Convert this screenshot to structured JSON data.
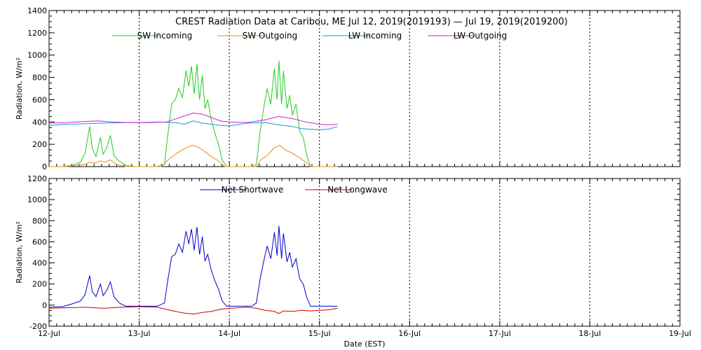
{
  "chart_data": [
    {
      "type": "line",
      "title": "CREST Radiation Data at Caribou, ME   Jul 12, 2019(2019193) — Jul 19, 2019(2019200)",
      "ylabel": "Radiation, W/m^2",
      "xlabel": "",
      "ylim": [
        0,
        1400
      ],
      "yticks": [
        0,
        200,
        400,
        600,
        800,
        1000,
        1200,
        1400
      ],
      "xlim": [
        0,
        7
      ],
      "grid": true,
      "legend": "top",
      "x_unit": "days since 12-Jul",
      "series": [
        {
          "name": "SW Incoming",
          "color": "#22cc22",
          "points": [
            [
              0,
              0
            ],
            [
              0.15,
              0
            ],
            [
              0.25,
              10
            ],
            [
              0.35,
              40
            ],
            [
              0.4,
              120
            ],
            [
              0.45,
              360
            ],
            [
              0.48,
              160
            ],
            [
              0.52,
              90
            ],
            [
              0.57,
              260
            ],
            [
              0.6,
              110
            ],
            [
              0.64,
              170
            ],
            [
              0.68,
              280
            ],
            [
              0.72,
              100
            ],
            [
              0.76,
              60
            ],
            [
              0.85,
              10
            ],
            [
              0.95,
              0
            ],
            [
              1.2,
              0
            ],
            [
              1.28,
              20
            ],
            [
              1.32,
              300
            ],
            [
              1.36,
              560
            ],
            [
              1.4,
              600
            ],
            [
              1.44,
              700
            ],
            [
              1.48,
              620
            ],
            [
              1.52,
              860
            ],
            [
              1.55,
              720
            ],
            [
              1.58,
              900
            ],
            [
              1.61,
              650
            ],
            [
              1.64,
              920
            ],
            [
              1.67,
              600
            ],
            [
              1.7,
              820
            ],
            [
              1.73,
              520
            ],
            [
              1.76,
              600
            ],
            [
              1.8,
              420
            ],
            [
              1.84,
              300
            ],
            [
              1.88,
              200
            ],
            [
              1.92,
              60
            ],
            [
              1.97,
              0
            ],
            [
              2.25,
              0
            ],
            [
              2.3,
              20
            ],
            [
              2.34,
              300
            ],
            [
              2.38,
              520
            ],
            [
              2.42,
              700
            ],
            [
              2.46,
              560
            ],
            [
              2.5,
              880
            ],
            [
              2.53,
              600
            ],
            [
              2.55,
              950
            ],
            [
              2.58,
              560
            ],
            [
              2.6,
              860
            ],
            [
              2.64,
              520
            ],
            [
              2.67,
              640
            ],
            [
              2.7,
              460
            ],
            [
              2.74,
              560
            ],
            [
              2.78,
              320
            ],
            [
              2.82,
              260
            ],
            [
              2.86,
              100
            ],
            [
              2.9,
              0
            ],
            [
              3.2,
              0
            ]
          ]
        },
        {
          "name": "SW Outgoing",
          "color": "#ee8811",
          "points": [
            [
              0,
              0
            ],
            [
              0.2,
              0
            ],
            [
              0.3,
              10
            ],
            [
              0.4,
              20
            ],
            [
              0.45,
              40
            ],
            [
              0.5,
              30
            ],
            [
              0.57,
              50
            ],
            [
              0.62,
              40
            ],
            [
              0.68,
              60
            ],
            [
              0.75,
              20
            ],
            [
              0.85,
              0
            ],
            [
              1.25,
              0
            ],
            [
              1.32,
              60
            ],
            [
              1.4,
              110
            ],
            [
              1.48,
              150
            ],
            [
              1.55,
              180
            ],
            [
              1.6,
              190
            ],
            [
              1.66,
              170
            ],
            [
              1.72,
              140
            ],
            [
              1.8,
              90
            ],
            [
              1.88,
              50
            ],
            [
              1.95,
              0
            ],
            [
              2.3,
              0
            ],
            [
              2.35,
              60
            ],
            [
              2.42,
              100
            ],
            [
              2.5,
              170
            ],
            [
              2.56,
              190
            ],
            [
              2.62,
              150
            ],
            [
              2.7,
              120
            ],
            [
              2.78,
              80
            ],
            [
              2.86,
              30
            ],
            [
              2.9,
              0
            ],
            [
              3.2,
              0
            ]
          ]
        },
        {
          "name": "LW Incoming",
          "color": "#1199dd",
          "points": [
            [
              0,
              370
            ],
            [
              0.2,
              380
            ],
            [
              0.4,
              385
            ],
            [
              0.6,
              390
            ],
            [
              0.8,
              395
            ],
            [
              1.0,
              395
            ],
            [
              1.2,
              400
            ],
            [
              1.4,
              395
            ],
            [
              1.5,
              380
            ],
            [
              1.6,
              410
            ],
            [
              1.7,
              390
            ],
            [
              1.8,
              380
            ],
            [
              1.9,
              370
            ],
            [
              2.0,
              365
            ],
            [
              2.2,
              390
            ],
            [
              2.4,
              395
            ],
            [
              2.5,
              380
            ],
            [
              2.6,
              370
            ],
            [
              2.7,
              360
            ],
            [
              2.8,
              340
            ],
            [
              2.9,
              335
            ],
            [
              3.0,
              330
            ],
            [
              3.1,
              335
            ],
            [
              3.2,
              360
            ]
          ]
        },
        {
          "name": "LW Outgoing",
          "color": "#cc22cc",
          "points": [
            [
              0,
              390
            ],
            [
              0.2,
              395
            ],
            [
              0.4,
              405
            ],
            [
              0.55,
              410
            ],
            [
              0.7,
              400
            ],
            [
              0.9,
              395
            ],
            [
              1.1,
              395
            ],
            [
              1.3,
              400
            ],
            [
              1.45,
              440
            ],
            [
              1.6,
              480
            ],
            [
              1.7,
              470
            ],
            [
              1.8,
              440
            ],
            [
              1.9,
              410
            ],
            [
              2.0,
              400
            ],
            [
              2.2,
              395
            ],
            [
              2.4,
              420
            ],
            [
              2.55,
              450
            ],
            [
              2.7,
              430
            ],
            [
              2.85,
              400
            ],
            [
              3.0,
              380
            ],
            [
              3.1,
              375
            ],
            [
              3.2,
              380
            ]
          ]
        }
      ]
    },
    {
      "type": "line",
      "title": "",
      "ylabel": "Radiation, W/m^2",
      "xlabel": "Date (EST)",
      "ylim": [
        -200,
        1200
      ],
      "yticks": [
        -200,
        0,
        200,
        400,
        600,
        800,
        1000,
        1200
      ],
      "xlim": [
        0,
        7
      ],
      "xticks": [
        "12-Jul",
        "13-Jul",
        "14-Jul",
        "15-Jul",
        "16-Jul",
        "17-Jul",
        "18-Jul",
        "19-Jul"
      ],
      "grid": true,
      "legend": "top",
      "series": [
        {
          "name": "Net Shortwave",
          "color": "#0000cc",
          "points": [
            [
              0,
              -20
            ],
            [
              0.15,
              -15
            ],
            [
              0.25,
              10
            ],
            [
              0.35,
              40
            ],
            [
              0.4,
              100
            ],
            [
              0.45,
              280
            ],
            [
              0.48,
              130
            ],
            [
              0.52,
              80
            ],
            [
              0.57,
              200
            ],
            [
              0.6,
              90
            ],
            [
              0.64,
              140
            ],
            [
              0.68,
              220
            ],
            [
              0.72,
              80
            ],
            [
              0.78,
              20
            ],
            [
              0.85,
              -10
            ],
            [
              1.0,
              -10
            ],
            [
              1.2,
              -10
            ],
            [
              1.28,
              20
            ],
            [
              1.32,
              250
            ],
            [
              1.36,
              460
            ],
            [
              1.4,
              480
            ],
            [
              1.44,
              580
            ],
            [
              1.48,
              500
            ],
            [
              1.52,
              700
            ],
            [
              1.55,
              580
            ],
            [
              1.58,
              720
            ],
            [
              1.61,
              520
            ],
            [
              1.64,
              740
            ],
            [
              1.67,
              480
            ],
            [
              1.7,
              650
            ],
            [
              1.73,
              420
            ],
            [
              1.76,
              480
            ],
            [
              1.8,
              330
            ],
            [
              1.84,
              230
            ],
            [
              1.88,
              150
            ],
            [
              1.92,
              40
            ],
            [
              1.97,
              -10
            ],
            [
              2.25,
              -10
            ],
            [
              2.3,
              20
            ],
            [
              2.34,
              240
            ],
            [
              2.38,
              410
            ],
            [
              2.42,
              560
            ],
            [
              2.46,
              440
            ],
            [
              2.5,
              690
            ],
            [
              2.53,
              470
            ],
            [
              2.55,
              750
            ],
            [
              2.58,
              440
            ],
            [
              2.6,
              680
            ],
            [
              2.64,
              410
            ],
            [
              2.67,
              500
            ],
            [
              2.7,
              360
            ],
            [
              2.74,
              440
            ],
            [
              2.78,
              250
            ],
            [
              2.82,
              200
            ],
            [
              2.86,
              70
            ],
            [
              2.9,
              -10
            ],
            [
              3.2,
              -10
            ]
          ]
        },
        {
          "name": "Net Longwave",
          "color": "#cc0000",
          "points": [
            [
              0,
              -30
            ],
            [
              0.2,
              -25
            ],
            [
              0.4,
              -20
            ],
            [
              0.6,
              -30
            ],
            [
              0.8,
              -20
            ],
            [
              1.0,
              -15
            ],
            [
              1.2,
              -20
            ],
            [
              1.3,
              -40
            ],
            [
              1.4,
              -60
            ],
            [
              1.5,
              -75
            ],
            [
              1.6,
              -85
            ],
            [
              1.7,
              -70
            ],
            [
              1.8,
              -60
            ],
            [
              1.9,
              -40
            ],
            [
              2.0,
              -30
            ],
            [
              2.2,
              -20
            ],
            [
              2.3,
              -30
            ],
            [
              2.4,
              -50
            ],
            [
              2.5,
              -60
            ],
            [
              2.55,
              -80
            ],
            [
              2.6,
              -55
            ],
            [
              2.7,
              -60
            ],
            [
              2.8,
              -50
            ],
            [
              2.9,
              -55
            ],
            [
              3.0,
              -50
            ],
            [
              3.1,
              -45
            ],
            [
              3.2,
              -30
            ]
          ]
        }
      ]
    }
  ]
}
